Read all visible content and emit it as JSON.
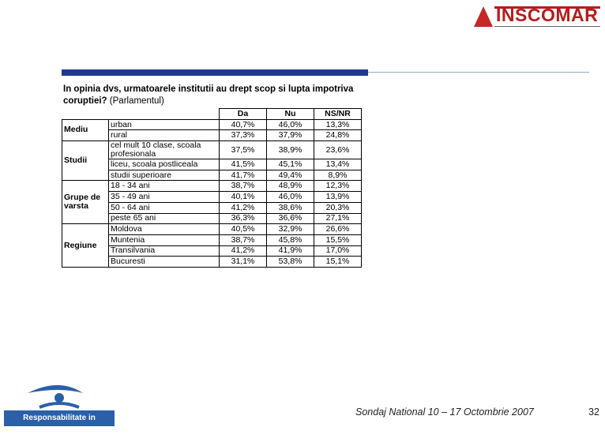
{
  "header": {
    "logo": "INSCOMAR"
  },
  "question": {
    "text": "In opinia dvs, urmatoarele institutii au drept scop si lupta impotriva coruptiei?",
    "note": "(Parlamentul)"
  },
  "table": {
    "columns": [
      "Da",
      "Nu",
      "NS/NR"
    ],
    "groups": [
      {
        "label": "Mediu",
        "rows": [
          [
            "urban",
            "40,7%",
            "46,0%",
            "13,3%"
          ],
          [
            "rural",
            "37,3%",
            "37,9%",
            "24,8%"
          ]
        ]
      },
      {
        "label": "Studii",
        "rows": [
          [
            "cel mult 10 clase, scoala profesionala",
            "37,5%",
            "38,9%",
            "23,6%"
          ],
          [
            "liceu, scoala postliceala",
            "41,5%",
            "45,1%",
            "13,4%"
          ],
          [
            "studii superioare",
            "41,7%",
            "49,4%",
            "8,9%"
          ]
        ]
      },
      {
        "label": "Grupe de varsta",
        "rows": [
          [
            "18 - 34 ani",
            "38,7%",
            "48,9%",
            "12,3%"
          ],
          [
            "35 - 49 ani",
            "40,1%",
            "46,0%",
            "13,9%"
          ],
          [
            "50 - 64 ani",
            "41,2%",
            "38,6%",
            "20,3%"
          ],
          [
            "peste 65 ani",
            "36,3%",
            "36,6%",
            "27,1%"
          ]
        ]
      },
      {
        "label": "Regiune",
        "rows": [
          [
            "Moldova",
            "40,5%",
            "32,9%",
            "26,6%"
          ],
          [
            "Muntenia",
            "38,7%",
            "45,8%",
            "15,5%"
          ],
          [
            "Transilvania",
            "41,2%",
            "41,9%",
            "17,0%"
          ],
          [
            "Bucuresti",
            "31,1%",
            "53,8%",
            "15,1%"
          ]
        ]
      }
    ]
  },
  "footer": {
    "logo": "Responsabilitate in Democratie",
    "text": "Sondaj National 10 – 17 Octombrie 2007",
    "page": "32"
  }
}
